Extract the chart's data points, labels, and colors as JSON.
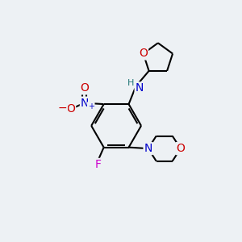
{
  "bg_color": "#edf1f4",
  "bond_color": "#000000",
  "bond_width": 1.5,
  "atom_colors": {
    "C": "#000000",
    "N": "#0000cc",
    "O": "#cc0000",
    "F": "#cc00cc",
    "H": "#227777",
    "Nplus": "#0000cc",
    "Ominus": "#cc0000"
  },
  "font_size": 10,
  "small_font_size": 8
}
